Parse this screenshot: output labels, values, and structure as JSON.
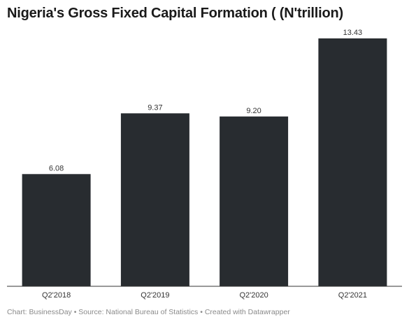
{
  "chart_data": {
    "type": "bar",
    "title": "Nigeria's Gross Fixed Capital Formation ( (N'trillion)",
    "categories": [
      "Q2'2018",
      "Q2'2019",
      "Q2'2020",
      "Q2'2021"
    ],
    "values": [
      6.08,
      9.37,
      9.2,
      13.43
    ],
    "value_labels": [
      "6.08",
      "9.37",
      "9.20",
      "13.43"
    ],
    "xlabel": "",
    "ylabel": "",
    "ylim": [
      0,
      13.43
    ],
    "grid": false,
    "legend": "none",
    "bar_color": "#282c30"
  },
  "footer": {
    "text": "Chart: BusinessDay • Source: National Bureau of Statistics • Created with Datawrapper"
  }
}
